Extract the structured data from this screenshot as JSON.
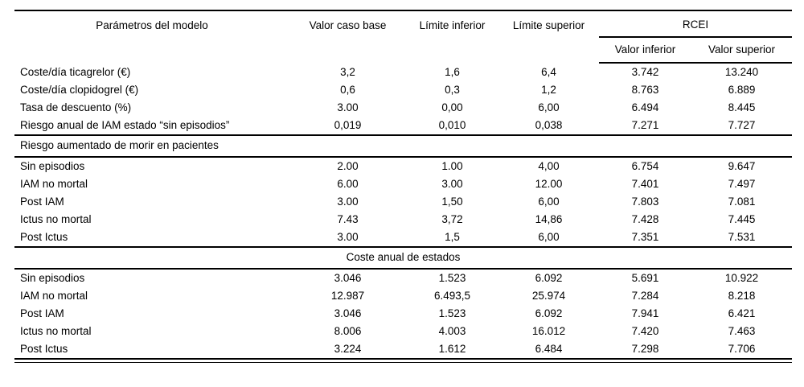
{
  "table": {
    "columns": [
      "Parámetros del modelo",
      "Valor caso base",
      "Límite inferior",
      "Límite superior"
    ],
    "rcei": {
      "label": "RCEI",
      "sub": [
        "Valor inferior",
        "Valor superior"
      ]
    },
    "sections": [
      {
        "header": null,
        "align": "left",
        "rows": [
          {
            "label": "Coste/día ticagrelor (€)",
            "values": [
              "3,2",
              "1,6",
              "6,4",
              "3.742",
              "13.240"
            ]
          },
          {
            "label": "Coste/día clopidogrel (€)",
            "values": [
              "0,6",
              "0,3",
              "1,2",
              "8.763",
              "6.889"
            ]
          },
          {
            "label": "Tasa de descuento (%)",
            "values": [
              "3.00",
              "0,00",
              "6,00",
              "6.494",
              "8.445"
            ]
          },
          {
            "label": "Riesgo anual de IAM estado “sin episodios”",
            "values": [
              "0,019",
              "0,010",
              "0,038",
              "7.271",
              "7.727"
            ]
          }
        ]
      },
      {
        "header": "Riesgo aumentado de morir en pacientes",
        "align": "left",
        "rows": [
          {
            "label": "Sin episodios",
            "values": [
              "2.00",
              "1.00",
              "4,00",
              "6.754",
              "9.647"
            ]
          },
          {
            "label": "IAM no mortal",
            "values": [
              "6.00",
              "3.00",
              "12.00",
              "7.401",
              "7.497"
            ]
          },
          {
            "label": "Post IAM",
            "values": [
              "3.00",
              "1,50",
              "6,00",
              "7.803",
              "7.081"
            ]
          },
          {
            "label": "Ictus no mortal",
            "values": [
              "7.43",
              "3,72",
              "14,86",
              "7.428",
              "7.445"
            ]
          },
          {
            "label": "Post Ictus",
            "values": [
              "3.00",
              "1,5",
              "6,00",
              "7.351",
              "7.531"
            ]
          }
        ]
      },
      {
        "header": "Coste anual de estados",
        "align": "center",
        "rows": [
          {
            "label": "Sin episodios",
            "values": [
              "3.046",
              "1.523",
              "6.092",
              "5.691",
              "10.922"
            ]
          },
          {
            "label": "IAM no mortal",
            "values": [
              "12.987",
              "6.493,5",
              "25.974",
              "7.284",
              "8.218"
            ]
          },
          {
            "label": "Post IAM",
            "values": [
              "3.046",
              "1.523",
              "6.092",
              "7.941",
              "6.421"
            ]
          },
          {
            "label": "Ictus no mortal",
            "values": [
              "8.006",
              "4.003",
              "16.012",
              "7.420",
              "7.463"
            ]
          },
          {
            "label": "Post Ictus",
            "values": [
              "3.224",
              "1.612",
              "6.484",
              "7.298",
              "7.706"
            ]
          }
        ]
      }
    ]
  }
}
